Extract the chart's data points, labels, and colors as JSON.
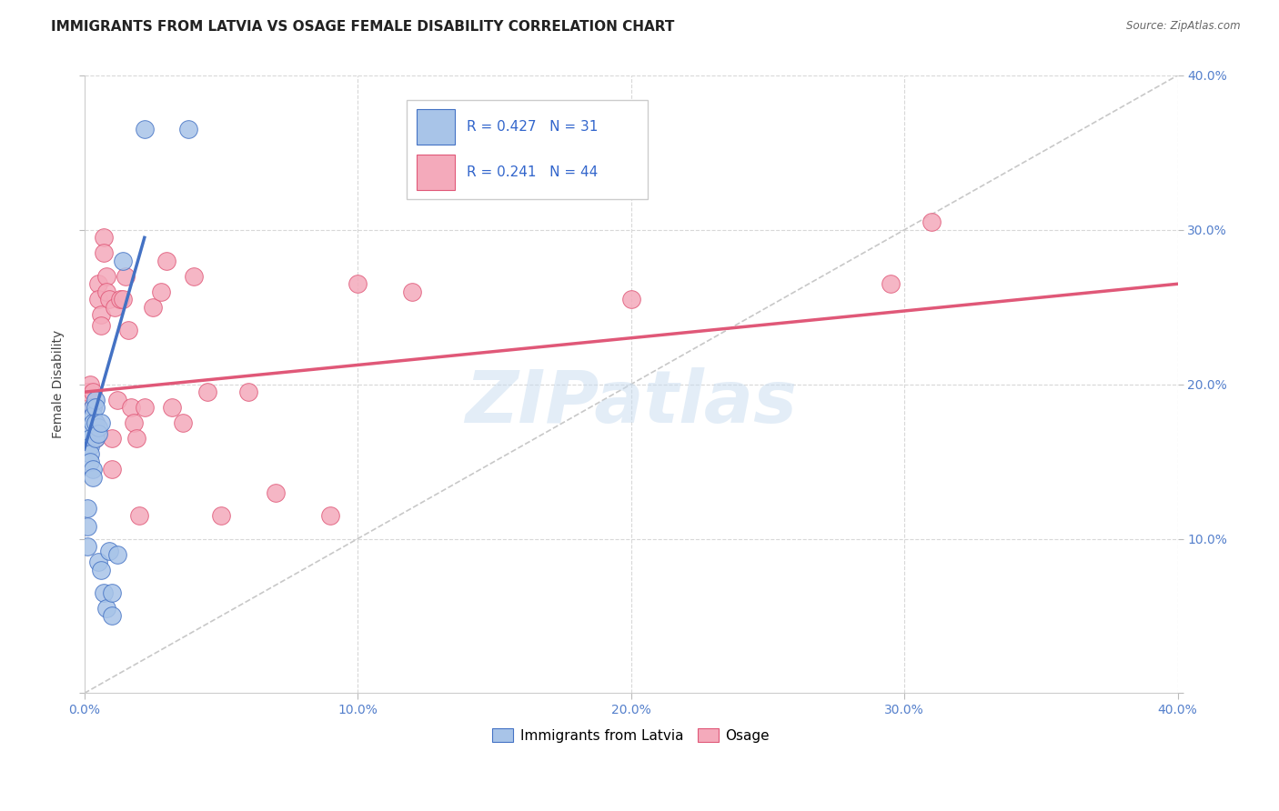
{
  "title": "IMMIGRANTS FROM LATVIA VS OSAGE FEMALE DISABILITY CORRELATION CHART",
  "source": "Source: ZipAtlas.com",
  "ylabel": "Female Disability",
  "xlim": [
    0.0,
    0.4
  ],
  "ylim": [
    0.0,
    0.4
  ],
  "xtick_vals": [
    0.0,
    0.1,
    0.2,
    0.3,
    0.4
  ],
  "ytick_vals": [
    0.0,
    0.1,
    0.2,
    0.3,
    0.4
  ],
  "legend_blue_label": "Immigrants from Latvia",
  "legend_pink_label": "Osage",
  "R_blue": 0.427,
  "N_blue": 31,
  "R_pink": 0.241,
  "N_pink": 44,
  "blue_color": "#a8c4e8",
  "pink_color": "#f4aabb",
  "line_blue": "#4472c4",
  "line_pink": "#e05878",
  "diagonal_color": "#c8c8c8",
  "grid_color": "#d8d8d8",
  "watermark": "ZIPatlas",
  "title_fontsize": 11,
  "axis_label_fontsize": 10,
  "tick_fontsize": 10,
  "blue_scatter_x": [
    0.001,
    0.001,
    0.001,
    0.002,
    0.002,
    0.002,
    0.002,
    0.002,
    0.003,
    0.003,
    0.003,
    0.003,
    0.003,
    0.004,
    0.004,
    0.004,
    0.004,
    0.005,
    0.005,
    0.005,
    0.006,
    0.006,
    0.007,
    0.008,
    0.009,
    0.01,
    0.012,
    0.014,
    0.022,
    0.038,
    0.01
  ],
  "blue_scatter_y": [
    0.12,
    0.108,
    0.095,
    0.17,
    0.165,
    0.16,
    0.155,
    0.15,
    0.185,
    0.18,
    0.175,
    0.145,
    0.14,
    0.19,
    0.185,
    0.175,
    0.165,
    0.172,
    0.168,
    0.085,
    0.175,
    0.08,
    0.065,
    0.055,
    0.092,
    0.065,
    0.09,
    0.28,
    0.365,
    0.365,
    0.05
  ],
  "pink_scatter_x": [
    0.001,
    0.002,
    0.003,
    0.003,
    0.004,
    0.004,
    0.005,
    0.005,
    0.006,
    0.006,
    0.007,
    0.007,
    0.008,
    0.008,
    0.009,
    0.01,
    0.01,
    0.011,
    0.012,
    0.013,
    0.014,
    0.015,
    0.016,
    0.017,
    0.018,
    0.019,
    0.02,
    0.022,
    0.025,
    0.028,
    0.03,
    0.032,
    0.036,
    0.04,
    0.045,
    0.05,
    0.06,
    0.07,
    0.09,
    0.1,
    0.12,
    0.2,
    0.295,
    0.31
  ],
  "pink_scatter_y": [
    0.195,
    0.2,
    0.195,
    0.185,
    0.175,
    0.165,
    0.265,
    0.255,
    0.245,
    0.238,
    0.295,
    0.285,
    0.27,
    0.26,
    0.255,
    0.165,
    0.145,
    0.25,
    0.19,
    0.255,
    0.255,
    0.27,
    0.235,
    0.185,
    0.175,
    0.165,
    0.115,
    0.185,
    0.25,
    0.26,
    0.28,
    0.185,
    0.175,
    0.27,
    0.195,
    0.115,
    0.195,
    0.13,
    0.115,
    0.265,
    0.26,
    0.255,
    0.265,
    0.305
  ],
  "blue_line_x0": 0.0,
  "blue_line_y0": 0.158,
  "blue_line_x1": 0.022,
  "blue_line_y1": 0.295,
  "pink_line_x0": 0.0,
  "pink_line_y0": 0.195,
  "pink_line_x1": 0.4,
  "pink_line_y1": 0.265
}
